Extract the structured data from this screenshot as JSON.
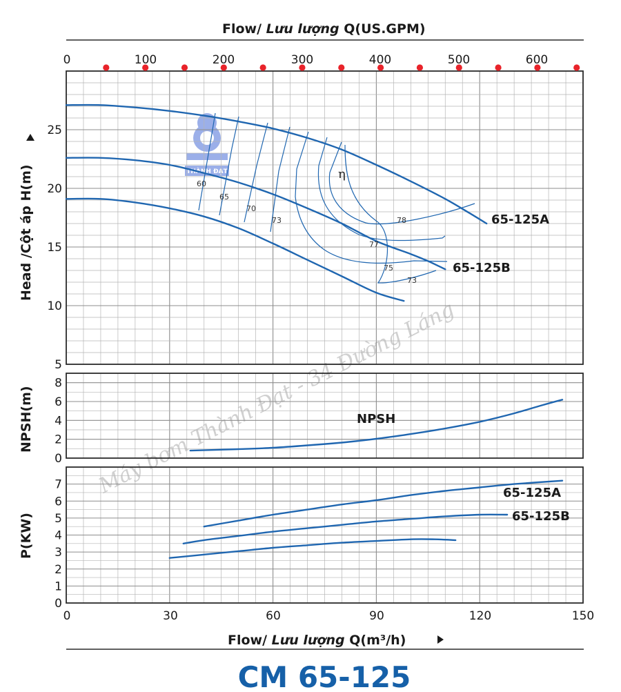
{
  "title": "CM 65-125",
  "colors": {
    "curve": "#1f66b0",
    "grid": "#b5b5b5",
    "frame": "#2a2a2a",
    "marker": "#e8232a",
    "title": "#1660a8"
  },
  "top_axis": {
    "label_plain": "Flow/ ",
    "label_italic": "Lưu lượng",
    "label_unit": " Q(US.GPM)",
    "ticks": [
      "0",
      "100",
      "200",
      "300",
      "400",
      "500",
      "600"
    ]
  },
  "bottom_axis": {
    "label_plain": "Flow/ ",
    "label_italic": "Lưu lượng",
    "label_unit": " Q(m³/h)",
    "ticks": [
      "0",
      "30",
      "60",
      "90",
      "120",
      "150"
    ]
  },
  "watermark": "Máy bơm Thành Đạt - 34 Đường Láng",
  "logo_text": "THÀNH ĐẠT",
  "chart_data": [
    {
      "type": "line",
      "panel": "head",
      "ylabel": "Head /Cột áp H(m)",
      "xlim": [
        0,
        150
      ],
      "ylim": [
        5,
        30
      ],
      "yticks": [
        5,
        10,
        15,
        20,
        25
      ],
      "grid": true,
      "series": [
        {
          "name": "65-125A",
          "x": [
            0,
            10,
            20,
            30,
            40,
            50,
            60,
            70,
            80,
            90,
            100,
            110,
            117,
            122
          ],
          "y": [
            27.1,
            27.1,
            26.9,
            26.6,
            26.2,
            25.7,
            25.1,
            24.3,
            23.3,
            22.0,
            20.6,
            19.1,
            17.9,
            17.0
          ]
        },
        {
          "name": "65-125B",
          "x": [
            0,
            10,
            20,
            30,
            40,
            50,
            60,
            70,
            80,
            90,
            100,
            105,
            110
          ],
          "y": [
            22.6,
            22.6,
            22.4,
            22.0,
            21.3,
            20.5,
            19.5,
            18.3,
            17.0,
            15.5,
            14.4,
            13.8,
            13.1
          ]
        },
        {
          "name": "",
          "x": [
            0,
            10,
            20,
            30,
            40,
            50,
            60,
            70,
            80,
            90,
            98
          ],
          "y": [
            19.1,
            19.1,
            18.8,
            18.3,
            17.6,
            16.6,
            15.3,
            13.9,
            12.5,
            11.1,
            10.4
          ]
        }
      ],
      "efficiency_symbol": "η",
      "efficiency_labels": [
        "60",
        "65",
        "70",
        "73",
        "78",
        "77",
        "75",
        "73"
      ],
      "annotations": [
        "65-125A",
        "65-125B"
      ]
    },
    {
      "type": "line",
      "panel": "npsh",
      "ylabel": "NPSH(m)",
      "xlim": [
        0,
        150
      ],
      "ylim": [
        0,
        9
      ],
      "yticks": [
        0,
        2,
        4,
        6,
        8
      ],
      "grid": true,
      "series": [
        {
          "name": "NPSH",
          "x": [
            36,
            50,
            60,
            70,
            80,
            90,
            100,
            110,
            120,
            130,
            138,
            144
          ],
          "y": [
            0.8,
            0.95,
            1.1,
            1.35,
            1.65,
            2.05,
            2.55,
            3.15,
            3.85,
            4.75,
            5.6,
            6.2
          ]
        }
      ]
    },
    {
      "type": "line",
      "panel": "power",
      "ylabel": "P(KW)",
      "xlim": [
        0,
        150
      ],
      "ylim": [
        0,
        8
      ],
      "yticks": [
        0,
        1,
        2,
        3,
        4,
        5,
        6,
        7
      ],
      "grid": true,
      "series": [
        {
          "name": "65-125A",
          "x": [
            40,
            50,
            60,
            70,
            80,
            90,
            100,
            110,
            120,
            130,
            144
          ],
          "y": [
            4.5,
            4.85,
            5.2,
            5.5,
            5.8,
            6.05,
            6.35,
            6.6,
            6.8,
            7.0,
            7.2
          ]
        },
        {
          "name": "65-125B",
          "x": [
            34,
            40,
            50,
            60,
            70,
            80,
            90,
            100,
            110,
            120,
            128
          ],
          "y": [
            3.5,
            3.7,
            3.95,
            4.2,
            4.4,
            4.6,
            4.8,
            4.95,
            5.1,
            5.2,
            5.2
          ]
        },
        {
          "name": "",
          "x": [
            30,
            40,
            50,
            60,
            70,
            80,
            90,
            100,
            107,
            113
          ],
          "y": [
            2.65,
            2.85,
            3.05,
            3.25,
            3.4,
            3.55,
            3.65,
            3.75,
            3.75,
            3.7
          ]
        }
      ]
    }
  ]
}
